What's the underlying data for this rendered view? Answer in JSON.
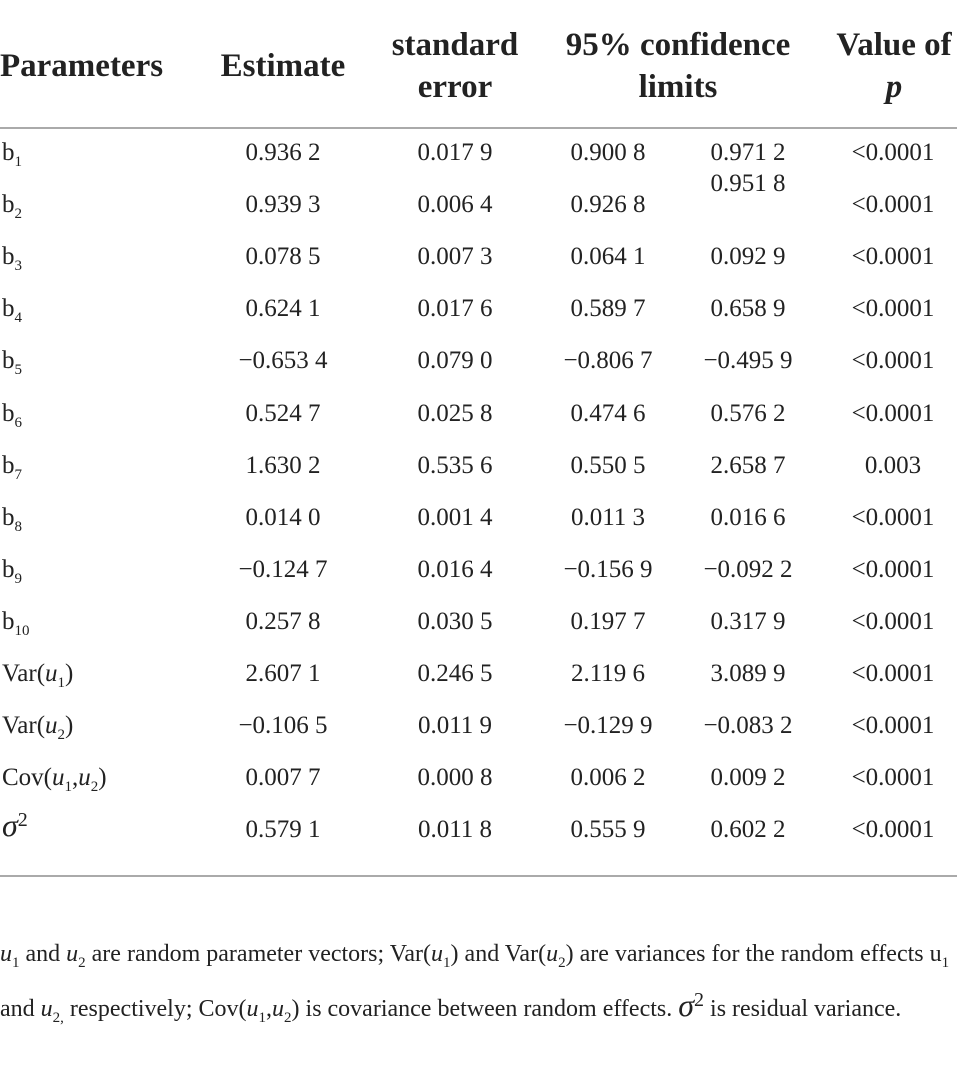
{
  "table": {
    "header": {
      "parameters": "Parameters",
      "estimate": "Estimate",
      "standard_error": "standard error",
      "confidence_limits": "95% confidence limits",
      "p_value": [
        {
          "text": "Value of "
        },
        {
          "italic": "p"
        }
      ]
    },
    "rows": [
      {
        "parameter": [
          {
            "text": "b"
          },
          {
            "sub": "1"
          }
        ],
        "cells": [
          "0.936 2",
          "0.017 9",
          "0.900 8",
          "0.971 2",
          "<0.0001"
        ]
      },
      {
        "parameter": [
          {
            "text": "b"
          },
          {
            "sub": "2"
          }
        ],
        "cells": [
          "0.939 3",
          "0.006 4",
          "0.926 8",
          "0.951 8",
          "<0.0001"
        ]
      },
      {
        "parameter": [
          {
            "text": "b"
          },
          {
            "sub": "3"
          }
        ],
        "cells": [
          "0.078 5",
          "0.007 3",
          "0.064 1",
          "0.092 9",
          "<0.0001"
        ]
      },
      {
        "parameter": [
          {
            "text": "b"
          },
          {
            "sub": "4"
          }
        ],
        "cells": [
          "0.624 1",
          "0.017 6",
          "0.589 7",
          "0.658 9",
          "<0.0001"
        ]
      },
      {
        "parameter": [
          {
            "text": "b"
          },
          {
            "sub": "5"
          }
        ],
        "cells": [
          "−0.653 4",
          "0.079 0",
          "−0.806 7",
          "−0.495 9",
          "<0.0001"
        ]
      },
      {
        "parameter": [
          {
            "text": "b"
          },
          {
            "sub": "6"
          }
        ],
        "cells": [
          "0.524 7",
          "0.025 8",
          "0.474 6",
          "0.576 2",
          "<0.0001"
        ]
      },
      {
        "parameter": [
          {
            "text": "b"
          },
          {
            "sub": "7"
          }
        ],
        "cells": [
          "1.630 2",
          "0.535 6",
          "0.550 5",
          "2.658 7",
          "0.003"
        ]
      },
      {
        "parameter": [
          {
            "text": "b"
          },
          {
            "sub": "8"
          }
        ],
        "cells": [
          "0.014 0",
          "0.001 4",
          "0.011 3",
          "0.016 6",
          "<0.0001"
        ]
      },
      {
        "parameter": [
          {
            "text": "b"
          },
          {
            "sub": "9"
          }
        ],
        "cells": [
          "−0.124 7",
          "0.016 4",
          "−0.156 9",
          "−0.092 2",
          "<0.0001"
        ]
      },
      {
        "parameter": [
          {
            "text": "b"
          },
          {
            "sub": "10"
          }
        ],
        "cells": [
          "0.257 8",
          "0.030 5",
          "0.197 7",
          "0.317 9",
          "<0.0001"
        ]
      },
      {
        "parameter": [
          {
            "text": "Var("
          },
          {
            "italic": "u"
          },
          {
            "sub": "1"
          },
          {
            "text": ")"
          }
        ],
        "cells": [
          "2.607 1",
          "0.246 5",
          "2.119 6",
          "3.089 9",
          "<0.0001"
        ]
      },
      {
        "parameter": [
          {
            "text": "Var("
          },
          {
            "italic": "u"
          },
          {
            "sub": "2"
          },
          {
            "text": ")"
          }
        ],
        "cells": [
          "−0.106 5",
          "0.011 9",
          "−0.129 9",
          "−0.083 2",
          "<0.0001"
        ]
      },
      {
        "parameter": [
          {
            "text": "Cov("
          },
          {
            "italic": "u"
          },
          {
            "sub": "1"
          },
          {
            "text": ","
          },
          {
            "italic": "u"
          },
          {
            "sub": "2"
          },
          {
            "text": ")"
          }
        ],
        "cells": [
          "0.007 7",
          "0.000 8",
          "0.006 2",
          "0.009 2",
          "<0.0001"
        ]
      },
      {
        "parameter": [
          {
            "italic": "σ"
          },
          {
            "sup": "2"
          }
        ],
        "cells": [
          "0.579 1",
          "0.011 8",
          "0.555 9",
          "0.602 2",
          "<0.0001"
        ]
      }
    ]
  },
  "footnote": [
    {
      "italic": "u"
    },
    {
      "sub": "1"
    },
    {
      "text": " and "
    },
    {
      "italic": "u"
    },
    {
      "sub": "2"
    },
    {
      "text": " are random parameter vectors; Var("
    },
    {
      "italic": "u"
    },
    {
      "sub": "1"
    },
    {
      "text": ") and Var("
    },
    {
      "italic": "u"
    },
    {
      "sub": "2"
    },
    {
      "text": ") are variances for the random effects u"
    },
    {
      "sub": "1"
    },
    {
      "text": " and "
    },
    {
      "italic": "u"
    },
    {
      "sub": "2,"
    },
    {
      "text": " respectively; Cov("
    },
    {
      "italic": "u"
    },
    {
      "sub": "1"
    },
    {
      "text": ","
    },
    {
      "italic": "u"
    },
    {
      "sub": "2"
    },
    {
      "text": ") is covariance between random effects. "
    },
    {
      "italic": "σ"
    },
    {
      "sup": "2"
    },
    {
      "text": "  is residual variance."
    }
  ]
}
